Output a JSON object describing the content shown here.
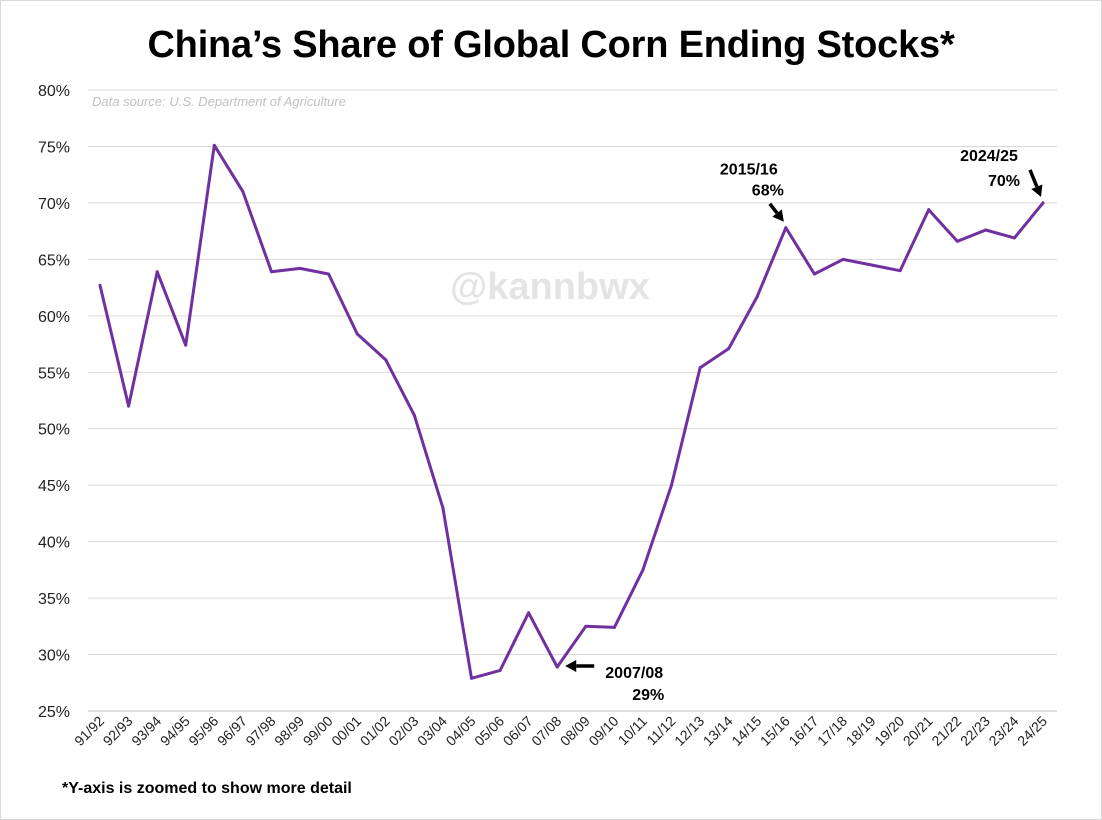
{
  "chart_data": {
    "type": "line",
    "title": "China’s Share of Global Corn Ending Stocks*",
    "source_note": "Data source: U.S. Department of Agriculture",
    "watermark": "@kannbwx",
    "footnote": "*Y-axis is zoomed to show more detail",
    "xlabel": "",
    "ylabel": "",
    "y_unit": "%",
    "ylim": [
      25,
      80
    ],
    "yticks": [
      25,
      30,
      35,
      40,
      45,
      50,
      55,
      60,
      65,
      70,
      75,
      80
    ],
    "ytick_labels": [
      "25%",
      "30%",
      "35%",
      "40%",
      "45%",
      "50%",
      "55%",
      "60%",
      "65%",
      "70%",
      "75%",
      "80%"
    ],
    "grid": true,
    "line_color": "#7030a0",
    "categories": [
      "91/92",
      "92/93",
      "93/94",
      "94/95",
      "95/96",
      "96/97",
      "97/98",
      "98/99",
      "99/00",
      "00/01",
      "01/02",
      "02/03",
      "03/04",
      "04/05",
      "05/06",
      "06/07",
      "07/08",
      "08/09",
      "09/10",
      "10/11",
      "11/12",
      "12/13",
      "13/14",
      "14/15",
      "15/16",
      "16/17",
      "17/18",
      "18/19",
      "19/20",
      "20/21",
      "21/22",
      "22/23",
      "23/24",
      "24/25"
    ],
    "values": [
      62.7,
      52.0,
      63.9,
      57.4,
      75.1,
      71.0,
      63.9,
      64.2,
      63.7,
      58.4,
      56.1,
      51.2,
      43.0,
      27.9,
      28.6,
      33.7,
      28.9,
      32.5,
      32.4,
      37.5,
      45.0,
      55.4,
      57.1,
      61.7,
      67.8,
      63.7,
      65.0,
      64.5,
      64.0,
      69.4,
      66.6,
      67.6,
      66.9,
      70.0
    ],
    "annotations": [
      {
        "lines": [
          "2015/16",
          "68%"
        ],
        "category": "15/16"
      },
      {
        "lines": [
          "2024/25",
          "70%"
        ],
        "category": "24/25"
      },
      {
        "lines": [
          "2007/08",
          "29%"
        ],
        "category": "07/08"
      }
    ]
  }
}
